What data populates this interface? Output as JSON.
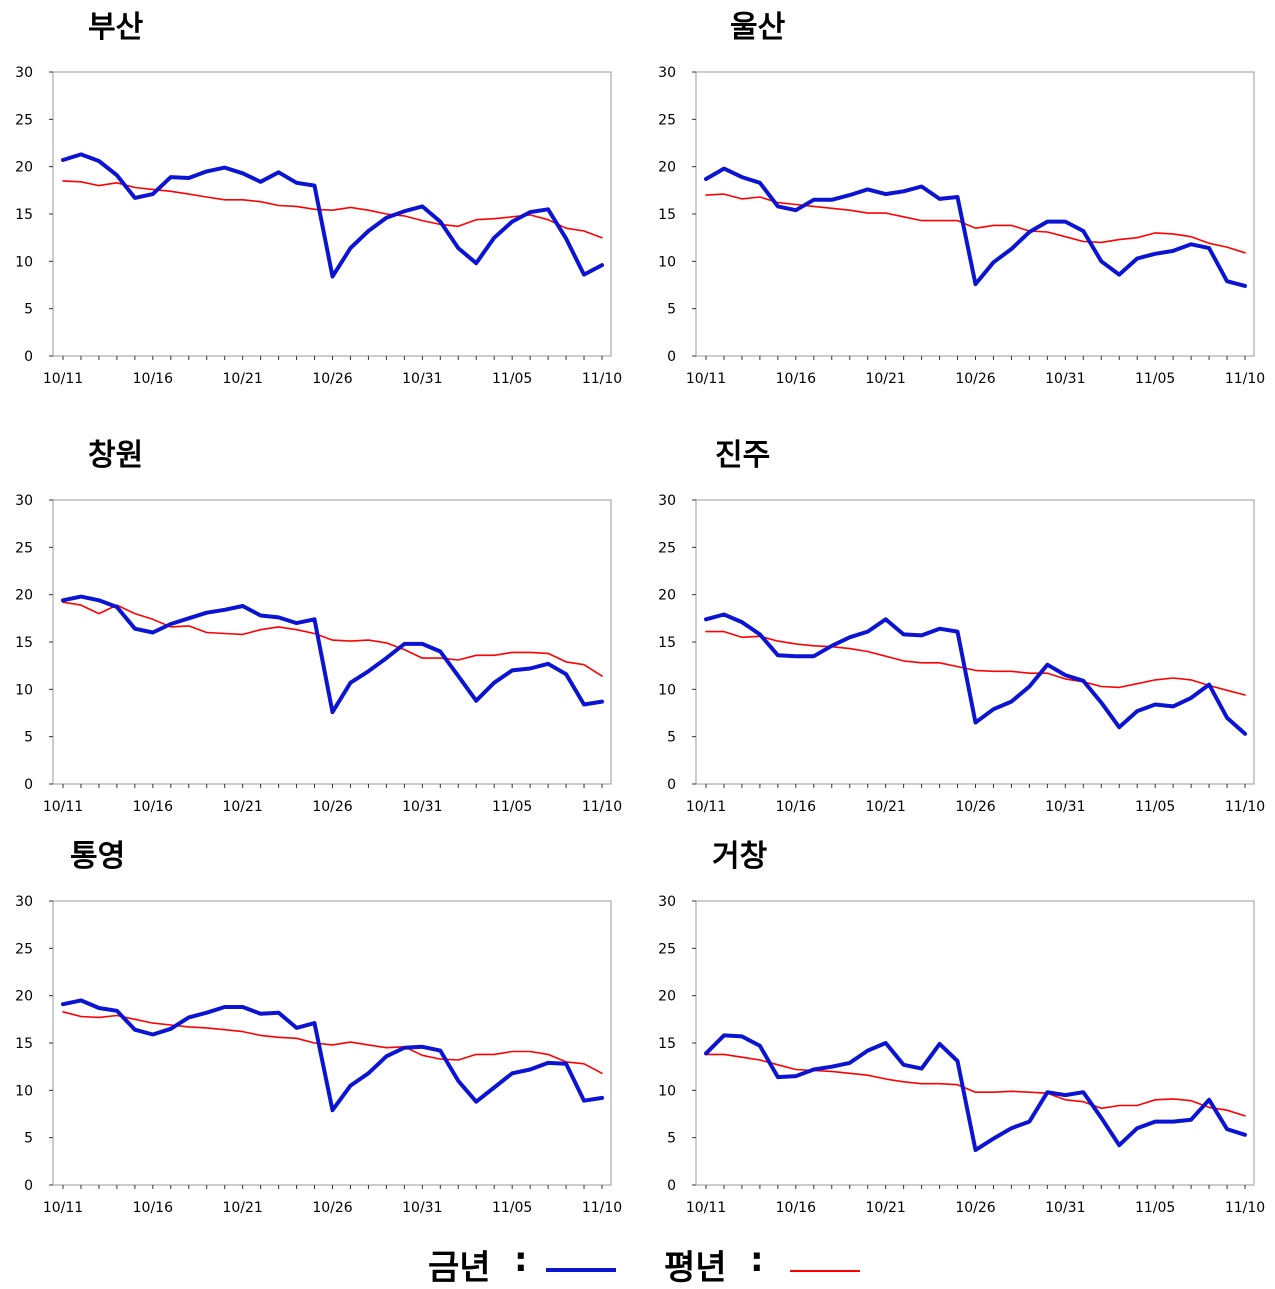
{
  "legend": {
    "current_label": "금년",
    "normal_label": "평년",
    "separator": ":",
    "current_color": "#0a14d2",
    "normal_color": "#ff0000"
  },
  "chart_data": [
    {
      "type": "line",
      "title": "부산",
      "ylim": [
        0,
        30
      ],
      "yticks": [
        "0",
        "5",
        "10",
        "15",
        "20",
        "25",
        "30"
      ],
      "xtick_labels": [
        "10/11",
        "10/16",
        "10/21",
        "10/26",
        "10/31",
        "11/05",
        "11/10"
      ],
      "series": [
        {
          "name": "금년",
          "values": [
            20.7,
            21.3,
            20.6,
            19.1,
            16.7,
            17.1,
            18.9,
            18.8,
            19.5,
            19.9,
            19.3,
            18.4,
            19.4,
            18.3,
            18.0,
            8.4,
            11.4,
            13.2,
            14.6,
            15.3,
            15.8,
            14.2,
            11.4,
            9.8,
            12.5,
            14.2,
            15.2,
            15.5,
            12.4,
            8.6,
            9.6
          ]
        },
        {
          "name": "평년",
          "values": [
            18.5,
            18.4,
            18.0,
            18.3,
            17.8,
            17.6,
            17.4,
            17.1,
            16.8,
            16.5,
            16.5,
            16.3,
            15.9,
            15.8,
            15.5,
            15.4,
            15.7,
            15.4,
            15.0,
            14.8,
            14.3,
            13.9,
            13.7,
            14.4,
            14.5,
            14.7,
            14.9,
            14.4,
            13.5,
            13.2,
            12.5
          ]
        }
      ]
    },
    {
      "type": "line",
      "title": "울산",
      "ylim": [
        0,
        30
      ],
      "yticks": [
        "0",
        "5",
        "10",
        "15",
        "20",
        "25",
        "30"
      ],
      "xtick_labels": [
        "10/11",
        "10/16",
        "10/21",
        "10/26",
        "10/31",
        "11/05",
        "11/10"
      ],
      "series": [
        {
          "name": "금년",
          "values": [
            18.7,
            19.8,
            18.9,
            18.3,
            15.8,
            15.4,
            16.5,
            16.5,
            17.0,
            17.6,
            17.1,
            17.4,
            17.9,
            16.6,
            16.8,
            7.6,
            9.9,
            11.3,
            13.1,
            14.2,
            14.2,
            13.2,
            10.0,
            8.6,
            10.3,
            10.8,
            11.1,
            11.8,
            11.4,
            7.9,
            7.4
          ]
        },
        {
          "name": "평년",
          "values": [
            17.0,
            17.1,
            16.6,
            16.8,
            16.2,
            16.0,
            15.8,
            15.6,
            15.4,
            15.1,
            15.1,
            14.7,
            14.3,
            14.3,
            14.3,
            13.5,
            13.8,
            13.8,
            13.2,
            13.1,
            12.6,
            12.1,
            12.0,
            12.3,
            12.5,
            13.0,
            12.9,
            12.6,
            11.9,
            11.5,
            10.9
          ]
        }
      ]
    },
    {
      "type": "line",
      "title": "창원",
      "ylim": [
        0,
        30
      ],
      "yticks": [
        "0",
        "5",
        "10",
        "15",
        "20",
        "25",
        "30"
      ],
      "xtick_labels": [
        "10/11",
        "10/16",
        "10/21",
        "10/26",
        "10/31",
        "11/05",
        "11/10"
      ],
      "series": [
        {
          "name": "금년",
          "values": [
            19.4,
            19.8,
            19.4,
            18.7,
            16.4,
            16.0,
            16.9,
            17.5,
            18.1,
            18.4,
            18.8,
            17.8,
            17.6,
            17.0,
            17.4,
            7.6,
            10.7,
            11.9,
            13.3,
            14.8,
            14.8,
            14.0,
            11.4,
            8.8,
            10.7,
            12.0,
            12.2,
            12.7,
            11.6,
            8.4,
            8.7
          ]
        },
        {
          "name": "평년",
          "values": [
            19.2,
            18.9,
            18.0,
            18.9,
            18.0,
            17.4,
            16.6,
            16.7,
            16.0,
            15.9,
            15.8,
            16.3,
            16.6,
            16.3,
            15.9,
            15.2,
            15.1,
            15.2,
            14.9,
            14.2,
            13.3,
            13.3,
            13.1,
            13.6,
            13.6,
            13.9,
            13.9,
            13.8,
            12.9,
            12.6,
            11.4
          ]
        }
      ]
    },
    {
      "type": "line",
      "title": "진주",
      "ylim": [
        0,
        30
      ],
      "yticks": [
        "0",
        "5",
        "10",
        "15",
        "20",
        "25",
        "30"
      ],
      "xtick_labels": [
        "10/11",
        "10/16",
        "10/21",
        "10/26",
        "10/31",
        "11/05",
        "11/10"
      ],
      "series": [
        {
          "name": "금년",
          "values": [
            17.4,
            17.9,
            17.1,
            15.8,
            13.6,
            13.5,
            13.5,
            14.6,
            15.5,
            16.1,
            17.4,
            15.8,
            15.7,
            16.4,
            16.1,
            6.5,
            7.9,
            8.7,
            10.3,
            12.6,
            11.5,
            10.9,
            8.6,
            6.0,
            7.7,
            8.4,
            8.2,
            9.1,
            10.5,
            7.0,
            5.3
          ]
        },
        {
          "name": "평년",
          "values": [
            16.1,
            16.1,
            15.5,
            15.6,
            15.1,
            14.8,
            14.6,
            14.5,
            14.3,
            14.0,
            13.5,
            13.0,
            12.8,
            12.8,
            12.4,
            12.0,
            11.9,
            11.9,
            11.7,
            11.7,
            11.1,
            10.8,
            10.3,
            10.2,
            10.6,
            11.0,
            11.2,
            11.0,
            10.4,
            9.9,
            9.4
          ]
        }
      ]
    },
    {
      "type": "line",
      "title": "통영",
      "ylim": [
        0,
        30
      ],
      "yticks": [
        "0",
        "5",
        "10",
        "15",
        "20",
        "25",
        "30"
      ],
      "xtick_labels": [
        "10/11",
        "10/16",
        "10/21",
        "10/26",
        "10/31",
        "11/05",
        "11/10"
      ],
      "series": [
        {
          "name": "금년",
          "values": [
            19.1,
            19.5,
            18.7,
            18.4,
            16.4,
            15.9,
            16.5,
            17.7,
            18.2,
            18.8,
            18.8,
            18.1,
            18.2,
            16.6,
            17.1,
            7.9,
            10.5,
            11.8,
            13.6,
            14.5,
            14.6,
            14.2,
            11.0,
            8.8,
            10.3,
            11.8,
            12.2,
            12.9,
            12.8,
            8.9,
            9.2
          ]
        },
        {
          "name": "평년",
          "values": [
            18.3,
            17.8,
            17.7,
            17.9,
            17.5,
            17.1,
            16.9,
            16.7,
            16.6,
            16.4,
            16.2,
            15.8,
            15.6,
            15.5,
            15.0,
            14.8,
            15.1,
            14.8,
            14.5,
            14.6,
            13.7,
            13.3,
            13.2,
            13.8,
            13.8,
            14.1,
            14.1,
            13.8,
            13.0,
            12.8,
            11.8
          ]
        }
      ]
    },
    {
      "type": "line",
      "title": "거창",
      "ylim": [
        0,
        30
      ],
      "yticks": [
        "0",
        "5",
        "10",
        "15",
        "20",
        "25",
        "30"
      ],
      "xtick_labels": [
        "10/11",
        "10/16",
        "10/21",
        "10/26",
        "10/31",
        "11/05",
        "11/10"
      ],
      "series": [
        {
          "name": "금년",
          "values": [
            13.9,
            15.8,
            15.7,
            14.7,
            11.4,
            11.5,
            12.2,
            12.5,
            12.9,
            14.2,
            15.0,
            12.7,
            12.3,
            14.9,
            13.1,
            3.7,
            4.9,
            6.0,
            6.7,
            9.8,
            9.5,
            9.8,
            7.1,
            4.2,
            6.0,
            6.7,
            6.7,
            6.9,
            9.0,
            5.9,
            5.3
          ]
        },
        {
          "name": "평년",
          "values": [
            13.8,
            13.8,
            13.5,
            13.2,
            12.7,
            12.2,
            12.1,
            12.0,
            11.8,
            11.6,
            11.2,
            10.9,
            10.7,
            10.7,
            10.6,
            9.8,
            9.8,
            9.9,
            9.8,
            9.7,
            9.0,
            8.8,
            8.1,
            8.4,
            8.4,
            9.0,
            9.1,
            8.9,
            8.2,
            7.9,
            7.3
          ]
        }
      ]
    }
  ]
}
